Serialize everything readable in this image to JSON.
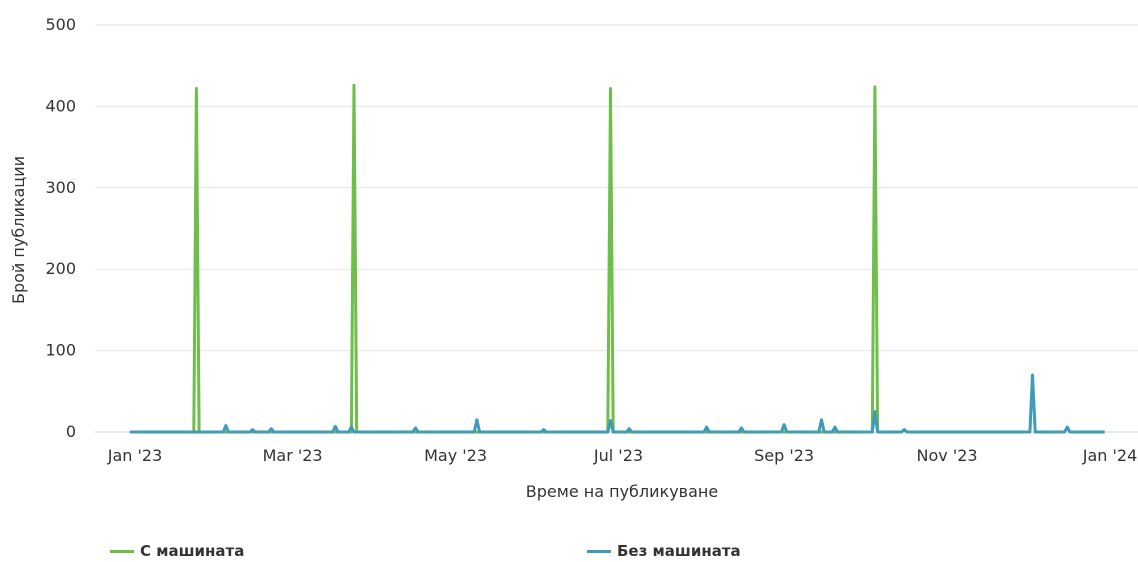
{
  "chart_data": {
    "type": "line",
    "xlabel": "Време на публикуване",
    "ylabel": "Брой публикации",
    "ylim": [
      0,
      500
    ],
    "yticks": [
      0,
      100,
      200,
      300,
      400,
      500
    ],
    "xlim": [
      "2022-12-20",
      "2024-01-01"
    ],
    "xticks": [
      {
        "date": "2023-01-01",
        "label": "Jan '23"
      },
      {
        "date": "2023-03-01",
        "label": "Mar '23"
      },
      {
        "date": "2023-05-01",
        "label": "May '23"
      },
      {
        "date": "2023-07-01",
        "label": "Jul '23"
      },
      {
        "date": "2023-09-01",
        "label": "Sep '23"
      },
      {
        "date": "2023-11-01",
        "label": "Nov '23"
      },
      {
        "date": "2024-01-01",
        "label": "Jan '24"
      }
    ],
    "grid": true,
    "legend": "bottom",
    "series": [
      {
        "name": "С машината",
        "color": "#6dbf4a",
        "points": [
          [
            "2023-01-23",
            0
          ],
          [
            "2023-01-24",
            422
          ],
          [
            "2023-01-25",
            0
          ],
          [
            "2023-03-23",
            0
          ],
          [
            "2023-03-24",
            426
          ],
          [
            "2023-03-25",
            0
          ],
          [
            "2023-06-27",
            0
          ],
          [
            "2023-06-28",
            422
          ],
          [
            "2023-06-29",
            0
          ],
          [
            "2023-10-04",
            0
          ],
          [
            "2023-10-05",
            424
          ],
          [
            "2023-10-06",
            0
          ]
        ]
      },
      {
        "name": "Без машината",
        "color": "#3f9bb8",
        "points": [
          [
            "2022-12-30",
            0
          ],
          [
            "2023-02-03",
            0
          ],
          [
            "2023-02-04",
            8
          ],
          [
            "2023-02-05",
            0
          ],
          [
            "2023-02-13",
            0
          ],
          [
            "2023-02-14",
            3
          ],
          [
            "2023-02-15",
            0
          ],
          [
            "2023-02-20",
            0
          ],
          [
            "2023-02-21",
            4
          ],
          [
            "2023-02-22",
            0
          ],
          [
            "2023-03-16",
            0
          ],
          [
            "2023-03-17",
            7
          ],
          [
            "2023-03-18",
            0
          ],
          [
            "2023-03-22",
            0
          ],
          [
            "2023-03-23",
            6
          ],
          [
            "2023-03-24",
            0
          ],
          [
            "2023-04-15",
            0
          ],
          [
            "2023-04-16",
            5
          ],
          [
            "2023-04-17",
            0
          ],
          [
            "2023-05-08",
            0
          ],
          [
            "2023-05-09",
            15
          ],
          [
            "2023-05-10",
            0
          ],
          [
            "2023-06-02",
            0
          ],
          [
            "2023-06-03",
            3
          ],
          [
            "2023-06-04",
            0
          ],
          [
            "2023-06-27",
            0
          ],
          [
            "2023-06-28",
            14
          ],
          [
            "2023-06-29",
            0
          ],
          [
            "2023-07-04",
            0
          ],
          [
            "2023-07-05",
            4
          ],
          [
            "2023-07-06",
            0
          ],
          [
            "2023-08-02",
            0
          ],
          [
            "2023-08-03",
            6
          ],
          [
            "2023-08-04",
            0
          ],
          [
            "2023-08-15",
            0
          ],
          [
            "2023-08-16",
            5
          ],
          [
            "2023-08-17",
            0
          ],
          [
            "2023-08-31",
            0
          ],
          [
            "2023-09-01",
            9
          ],
          [
            "2023-09-02",
            0
          ],
          [
            "2023-09-14",
            0
          ],
          [
            "2023-09-15",
            15
          ],
          [
            "2023-09-16",
            0
          ],
          [
            "2023-09-19",
            0
          ],
          [
            "2023-09-20",
            6
          ],
          [
            "2023-09-21",
            0
          ],
          [
            "2023-10-04",
            0
          ],
          [
            "2023-10-05",
            25
          ],
          [
            "2023-10-06",
            0
          ],
          [
            "2023-10-15",
            0
          ],
          [
            "2023-10-16",
            3
          ],
          [
            "2023-10-17",
            0
          ],
          [
            "2023-12-02",
            0
          ],
          [
            "2023-12-03",
            70
          ],
          [
            "2023-12-04",
            0
          ],
          [
            "2023-12-15",
            0
          ],
          [
            "2023-12-16",
            6
          ],
          [
            "2023-12-17",
            0
          ],
          [
            "2023-12-30",
            0
          ]
        ]
      }
    ]
  }
}
